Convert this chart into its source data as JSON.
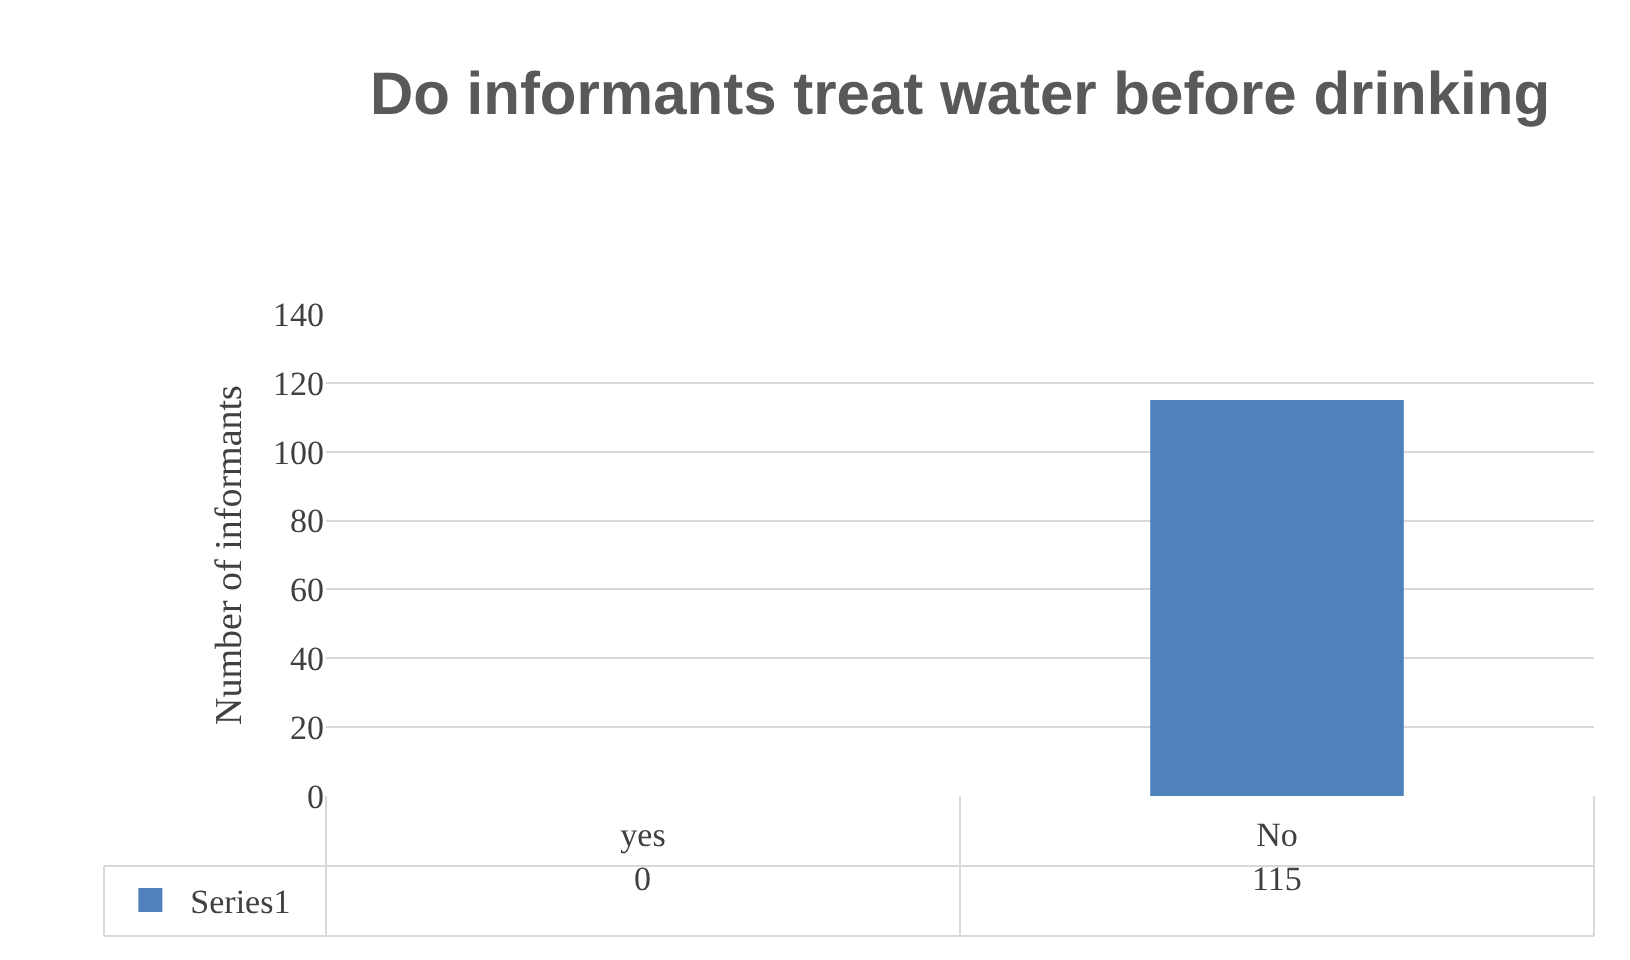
{
  "chart_data": {
    "type": "bar",
    "title": "Do informants treat water before drinking",
    "ylabel": "Number of informants",
    "categories": [
      "yes",
      "No"
    ],
    "series": [
      {
        "name": "Series1",
        "color": "#4f81bd",
        "values": [
          0,
          115
        ]
      }
    ],
    "ylim": [
      0,
      140
    ],
    "yticks": [
      0,
      20,
      40,
      60,
      80,
      100,
      120,
      140
    ],
    "grid": "y",
    "legend": "bottom left",
    "data_labels": true
  }
}
